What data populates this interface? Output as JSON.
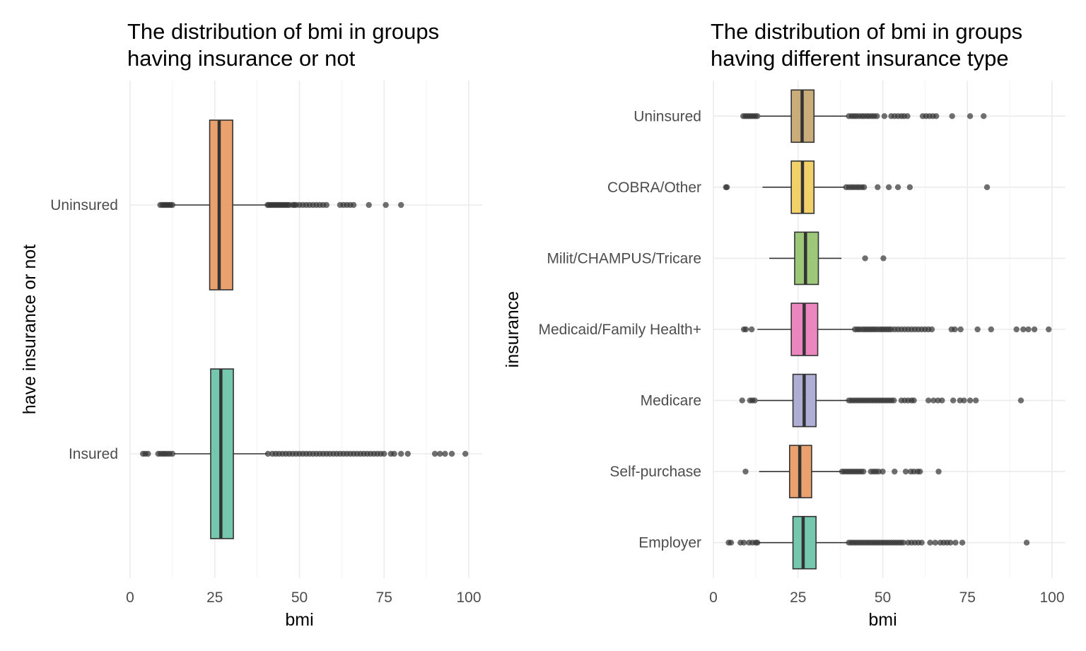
{
  "chart_data": [
    {
      "type": "boxplot",
      "orientation": "horizontal",
      "title": [
        "The distribution of bmi in groups",
        "having insurance or not"
      ],
      "xlabel": "bmi",
      "ylabel": "have insurance or not",
      "xlim": [
        0,
        104
      ],
      "xticks": [
        0,
        25,
        50,
        75,
        100
      ],
      "grid": true,
      "legend": "none",
      "categories": [
        "Uninsured",
        "Insured"
      ],
      "boxes": [
        {
          "category": "Uninsured",
          "color": "#E8975D",
          "whisker_low": 13,
          "q1": 23.5,
          "median": 26.3,
          "q3": 30.3,
          "whisker_high": 40.5,
          "outliers": [
            8.9,
            9.5,
            10,
            10.5,
            11,
            11.5,
            12,
            12.5,
            40.6,
            41,
            41.5,
            42,
            42.5,
            43,
            43.5,
            44,
            44.5,
            45,
            45.5,
            46,
            46.5,
            47,
            48,
            48.5,
            49,
            50,
            51,
            52,
            53,
            54,
            55,
            56,
            57,
            58,
            62,
            63,
            64,
            65,
            66,
            70.5,
            75.5,
            80
          ]
        },
        {
          "category": "Insured",
          "color": "#66C2A5",
          "whisker_low": 13,
          "q1": 23.8,
          "median": 26.8,
          "q3": 30.5,
          "whisker_high": 40.6,
          "outliers": [
            3.8,
            4.5,
            5.3,
            8.3,
            9,
            9.7,
            10.3,
            11,
            11.7,
            12.5,
            40.7,
            42,
            43,
            44,
            45,
            46,
            47,
            48,
            49,
            50,
            51,
            52,
            53,
            54,
            55,
            56,
            57,
            58,
            59,
            60,
            61,
            62,
            63,
            64,
            65,
            66,
            67,
            68,
            69,
            70,
            71,
            72,
            73,
            74,
            75,
            77,
            78,
            80,
            82,
            90,
            91.5,
            93,
            95,
            99
          ]
        }
      ]
    },
    {
      "type": "boxplot",
      "orientation": "horizontal",
      "title": [
        "The distribution of bmi in groups",
        "having different insurance type"
      ],
      "xlabel": "bmi",
      "ylabel": "insurance",
      "xlim": [
        0,
        104
      ],
      "xticks": [
        0,
        25,
        50,
        75,
        100
      ],
      "grid": true,
      "legend": "none",
      "categories": [
        "Uninsured",
        "COBRA/Other",
        "Milit/CHAMPUS/Tricare",
        "Medicaid/Family Health+",
        "Medicare",
        "Self-purchase",
        "Employer"
      ],
      "boxes": [
        {
          "category": "Uninsured",
          "color": "#C4A46C",
          "whisker_low": 13.7,
          "q1": 23,
          "median": 26.2,
          "q3": 29.7,
          "whisker_high": 39.5,
          "outliers": [
            8.8,
            9.4,
            10,
            10.6,
            11.2,
            11.8,
            12.4,
            13,
            40,
            40.8,
            41.5,
            42.2,
            43,
            43.8,
            44.5,
            45.3,
            46,
            46.8,
            47.5,
            48.3,
            50.5,
            52.5,
            53.5,
            54.5,
            55.5,
            56.3,
            57.3,
            61.8,
            62.8,
            63.8,
            64.8,
            65.8,
            70.5,
            75.8,
            79.8
          ]
        },
        {
          "category": "COBRA/Other",
          "color": "#F2CC5A",
          "whisker_low": 14.5,
          "q1": 23,
          "median": 26.3,
          "q3": 29.7,
          "whisker_high": 38.8,
          "outliers": [
            3.7,
            4,
            39.2,
            40,
            40.8,
            41.5,
            42.3,
            43,
            43.8,
            44.5,
            48.5,
            51.8,
            54.5,
            58,
            80.8
          ]
        },
        {
          "category": "Milit/CHAMPUS/Tricare",
          "color": "#93C26A",
          "whisker_low": 16.5,
          "q1": 24,
          "median": 27.2,
          "q3": 31,
          "whisker_high": 37.8,
          "outliers": [
            44.8,
            50.2
          ]
        },
        {
          "category": "Medicaid/Family Health+",
          "color": "#E97AB7",
          "whisker_low": 13,
          "q1": 23,
          "median": 26.8,
          "q3": 30.8,
          "whisker_high": 41.5,
          "outliers": [
            9,
            9.6,
            11.3,
            41.8,
            42.5,
            43.2,
            44,
            44.7,
            45.4,
            46.1,
            46.8,
            47.5,
            48.2,
            49,
            49.7,
            50.4,
            51.1,
            51.8,
            52.5,
            53.5,
            54.5,
            55.5,
            56.5,
            57.5,
            58.5,
            59.5,
            60.5,
            61.5,
            62.5,
            63.5,
            64.5,
            70.3,
            71.3,
            73,
            78,
            82,
            89.5,
            91.5,
            93,
            94.8,
            99
          ]
        },
        {
          "category": "Medicare",
          "color": "#A6A6D0",
          "whisker_low": 13,
          "q1": 23.5,
          "median": 26.8,
          "q3": 30.3,
          "whisker_high": 39.8,
          "outliers": [
            8.5,
            10.8,
            11.5,
            12.2,
            40,
            40.7,
            41.4,
            42.1,
            42.8,
            43.5,
            44.2,
            44.9,
            45.6,
            46.3,
            47,
            47.7,
            48.4,
            49.1,
            49.8,
            50.5,
            51.2,
            51.9,
            52.6,
            53.3,
            55.5,
            56.5,
            57.5,
            58.5,
            59.2,
            63.5,
            65,
            66.3,
            67.5,
            70.8,
            72.8,
            74,
            75.8,
            77.5,
            90.8
          ]
        },
        {
          "category": "Self-purchase",
          "color": "#E8975D",
          "whisker_low": 13.5,
          "q1": 22.5,
          "median": 25.5,
          "q3": 29,
          "whisker_high": 37.8,
          "outliers": [
            9.5,
            38,
            38.7,
            39.4,
            40.1,
            40.8,
            41.5,
            42.2,
            42.9,
            43.6,
            44.3,
            46.5,
            47.3,
            48,
            48.8,
            50,
            53.5,
            56.8,
            58.3,
            59.2,
            60.3,
            61,
            66.5
          ]
        },
        {
          "category": "Employer",
          "color": "#66C2A5",
          "whisker_low": 13.2,
          "q1": 23.5,
          "median": 26.5,
          "q3": 30.3,
          "whisker_high": 39.8,
          "outliers": [
            4.5,
            5.2,
            8,
            9,
            10.5,
            11.5,
            12.5,
            13,
            40,
            40.7,
            41.4,
            42.1,
            42.8,
            43.5,
            44.2,
            44.9,
            45.6,
            46.3,
            47,
            47.7,
            48.4,
            49.1,
            49.8,
            50.5,
            51.2,
            51.9,
            52.6,
            53.3,
            54,
            54.7,
            55.4,
            56.1,
            57.5,
            58.5,
            59.5,
            60.5,
            61.5,
            64,
            65.5,
            67,
            68,
            69,
            70,
            71.5,
            73.5,
            92.5
          ]
        }
      ]
    }
  ]
}
